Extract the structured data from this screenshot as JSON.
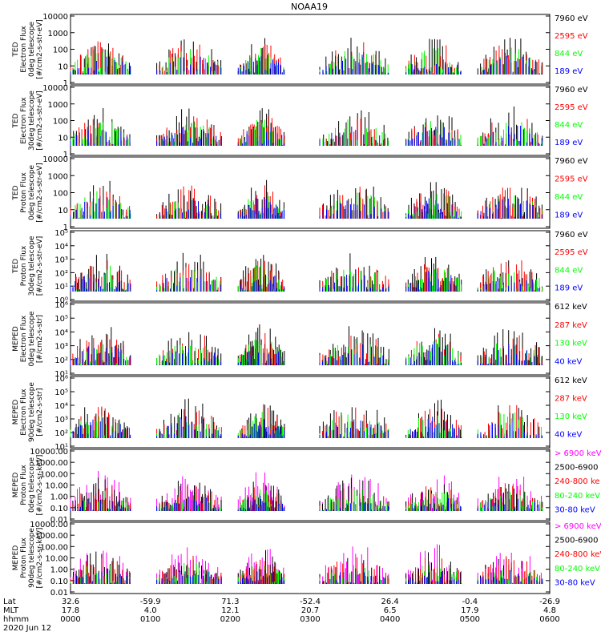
{
  "title": "NOAA19",
  "footer": {
    "row_labels": [
      "Lat",
      "MLT",
      "hhmm",
      "2020 Jun 12"
    ],
    "ticks": [
      {
        "lat": "32.6",
        "mlt": "17.8",
        "hhmm": "0000"
      },
      {
        "lat": "-59.9",
        "mlt": "4.0",
        "hhmm": "0100"
      },
      {
        "lat": "71.3",
        "mlt": "12.1",
        "hhmm": "0200"
      },
      {
        "lat": "-52.4",
        "mlt": "20.7",
        "hhmm": "0300"
      },
      {
        "lat": "26.4",
        "mlt": "6.5",
        "hhmm": "0400"
      },
      {
        "lat": "-0.4",
        "mlt": "17.9",
        "hhmm": "0500"
      },
      {
        "lat": "-26.9",
        "mlt": "4.8",
        "hhmm": "0600"
      }
    ]
  },
  "colors": {
    "blue": "#0000ff",
    "green": "#00ff00",
    "red": "#ff0000",
    "black": "#000000",
    "magenta": "#ff00ff"
  },
  "chart_data": [
    {
      "type": "line",
      "ylabel": [
        "TED",
        "Electron Flux",
        "0deg telescope",
        "[#/cm2-s-str-eV]"
      ],
      "yticks": [
        "10000",
        "1000",
        "100",
        "10",
        "1"
      ],
      "xlim": [
        "0000",
        "0600"
      ],
      "series": [
        {
          "name": "7960 eV",
          "color": "#000000"
        },
        {
          "name": "2595 eV",
          "color": "#ff0000"
        },
        {
          "name": "844 eV",
          "color": "#00ff00"
        },
        {
          "name": "189 eV",
          "color": "#0000ff"
        }
      ]
    },
    {
      "type": "line",
      "ylabel": [
        "TED",
        "Electron Flux",
        "30deg telescope",
        "[#/cm2-s-str-eV]"
      ],
      "yticks": [
        "10000",
        "1000",
        "100",
        "10",
        "1"
      ],
      "xlim": [
        "0000",
        "0600"
      ],
      "series": [
        {
          "name": "7960 eV",
          "color": "#000000"
        },
        {
          "name": "2595 eV",
          "color": "#ff0000"
        },
        {
          "name": "844 eV",
          "color": "#00ff00"
        },
        {
          "name": "189 eV",
          "color": "#0000ff"
        }
      ]
    },
    {
      "type": "line",
      "ylabel": [
        "TED",
        "Proton Flux",
        "0deg telescope",
        "[#/cm2-s-str-eV]"
      ],
      "yticks": [
        "10000",
        "1000",
        "100",
        "10",
        "1"
      ],
      "xlim": [
        "0000",
        "0600"
      ],
      "series": [
        {
          "name": "7960 eV",
          "color": "#000000"
        },
        {
          "name": "2595 eV",
          "color": "#ff0000"
        },
        {
          "name": "844 eV",
          "color": "#00ff00"
        },
        {
          "name": "189 eV",
          "color": "#0000ff"
        }
      ]
    },
    {
      "type": "line",
      "ylabel": [
        "TED",
        "Proton Flux",
        "30deg telescope",
        "[#/cm2-s-str-eV]"
      ],
      "yticks": [
        "10⁵",
        "10⁴",
        "10³",
        "10²",
        "10¹",
        "10⁰"
      ],
      "xlim": [
        "0000",
        "0600"
      ],
      "series": [
        {
          "name": "7960 eV",
          "color": "#000000"
        },
        {
          "name": "2595 eV",
          "color": "#ff0000"
        },
        {
          "name": "844 eV",
          "color": "#00ff00"
        },
        {
          "name": "189 eV",
          "color": "#0000ff"
        }
      ]
    },
    {
      "type": "line",
      "ylabel": [
        "MEPED",
        "Electron Flux",
        "0deg telescope",
        "[#/cm2-s-str]"
      ],
      "yticks": [
        "10⁶",
        "10⁵",
        "10⁴",
        "10³",
        "10²",
        "10¹"
      ],
      "xlim": [
        "0000",
        "0600"
      ],
      "series": [
        {
          "name": "612 keV",
          "color": "#000000"
        },
        {
          "name": "287 keV",
          "color": "#ff0000"
        },
        {
          "name": "130 keV",
          "color": "#00ff00"
        },
        {
          "name": "40 keV",
          "color": "#0000ff"
        }
      ]
    },
    {
      "type": "line",
      "ylabel": [
        "MEPED",
        "Electron Flux",
        "90deg telescope",
        "[#/cm2-s-str]"
      ],
      "yticks": [
        "10⁶",
        "10⁵",
        "10⁴",
        "10³",
        "10²",
        "10¹"
      ],
      "xlim": [
        "0000",
        "0600"
      ],
      "series": [
        {
          "name": "612 keV",
          "color": "#000000"
        },
        {
          "name": "287 keV",
          "color": "#ff0000"
        },
        {
          "name": "130 keV",
          "color": "#00ff00"
        },
        {
          "name": "40 keV",
          "color": "#0000ff"
        }
      ]
    },
    {
      "type": "line",
      "ylabel": [
        "MEPED",
        "Proton Flux",
        "0deg telescope",
        "[#/cm2-s-sr-keV]"
      ],
      "yticks": [
        "10000.00",
        "1000.00",
        "100.00",
        "10.00",
        "1.00",
        "0.10",
        "0.01"
      ],
      "xlim": [
        "0000",
        "0600"
      ],
      "series": [
        {
          "name": "> 6900 keV",
          "color": "#ff00ff"
        },
        {
          "name": "2500-6900",
          "color": "#000000"
        },
        {
          "name": "240-800 ke",
          "color": "#ff0000"
        },
        {
          "name": "80-240 keV",
          "color": "#00ff00"
        },
        {
          "name": "30-80 keV",
          "color": "#0000ff"
        }
      ]
    },
    {
      "type": "line",
      "ylabel": [
        "MEPED",
        "Proton Flux",
        "90deg telescope",
        "[#/cm2-s-sr-keV]"
      ],
      "yticks": [
        "10000.00",
        "1000.00",
        "100.00",
        "10.00",
        "1.00",
        "0.10",
        "0.01"
      ],
      "xlim": [
        "0000",
        "0600"
      ],
      "series": [
        {
          "name": "> 6900 keV",
          "color": "#ff00ff"
        },
        {
          "name": "2500-6900",
          "color": "#000000"
        },
        {
          "name": "240-800 keV",
          "color": "#ff0000"
        },
        {
          "name": "80-240 keV",
          "color": "#00ff00"
        },
        {
          "name": "30-80 keV",
          "color": "#0000ff"
        }
      ]
    }
  ]
}
